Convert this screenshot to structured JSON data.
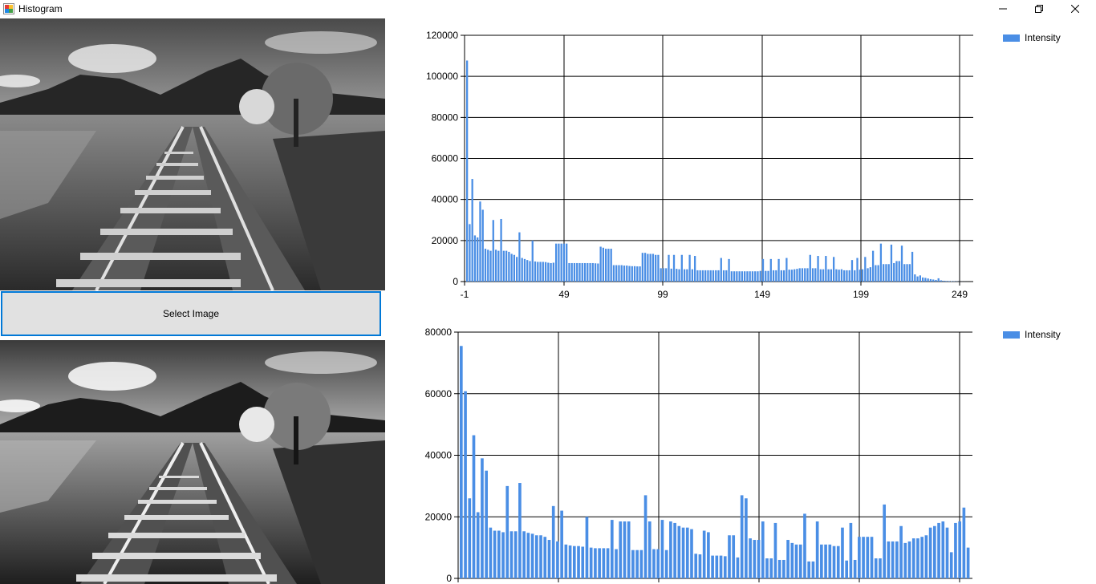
{
  "window": {
    "title": "Histogram",
    "icons": [
      "app-icon",
      "minimize-icon",
      "restore-icon",
      "close-icon"
    ]
  },
  "select_button": {
    "label": "Select Image"
  },
  "images": [
    {
      "name": "original-image",
      "description_visible": false
    },
    {
      "name": "equalized-image",
      "description_visible": false
    }
  ],
  "colors": {
    "bar": "#4a8ee5",
    "button_border": "#0078d7",
    "button_bg": "#e1e1e1"
  },
  "chart_data": [
    {
      "type": "bar",
      "legend": "Intensity",
      "legend_position": "top-right",
      "grid": true,
      "xlim": [
        -1,
        255
      ],
      "ylim": [
        0,
        120000
      ],
      "xticks": [
        -1,
        49,
        99,
        149,
        199,
        249
      ],
      "yticks": [
        0,
        20000,
        40000,
        60000,
        80000,
        100000,
        120000
      ],
      "series": [
        {
          "name": "Intensity",
          "values": [
            107700,
            28000,
            50000,
            22500,
            21500,
            39000,
            35000,
            16000,
            15500,
            15000,
            30000,
            15500,
            15000,
            30500,
            15000,
            15000,
            14500,
            13500,
            13000,
            12000,
            24000,
            11500,
            11000,
            10500,
            10000,
            20000,
            9800,
            9600,
            9600,
            9600,
            9500,
            9200,
            9000,
            9200,
            18500,
            18500,
            18500,
            18500,
            18500,
            9000,
            9000,
            9000,
            9000,
            9000,
            9000,
            9000,
            9000,
            9000,
            9000,
            8900,
            8800,
            17000,
            16500,
            16000,
            16000,
            16000,
            8000,
            8000,
            8000,
            8000,
            7800,
            7800,
            7600,
            7500,
            7500,
            7400,
            7400,
            14000,
            14000,
            13500,
            13500,
            13500,
            13000,
            13000,
            6500,
            6500,
            6500,
            13000,
            6300,
            13000,
            6200,
            6000,
            13000,
            6000,
            6000,
            13000,
            6000,
            12500,
            5500,
            5500,
            5500,
            5500,
            5500,
            5500,
            5500,
            5500,
            5500,
            11500,
            5500,
            5500,
            11000,
            5000,
            5000,
            5000,
            5000,
            5000,
            5000,
            5000,
            5000,
            5000,
            5000,
            5000,
            5200,
            11000,
            5200,
            5200,
            11000,
            5500,
            5500,
            11000,
            5500,
            5500,
            11500,
            5800,
            5800,
            6000,
            6200,
            6500,
            6500,
            6500,
            6500,
            13000,
            6500,
            6500,
            12500,
            6000,
            6000,
            12500,
            6000,
            6000,
            12000,
            6000,
            5800,
            6000,
            5500,
            5500,
            5500,
            10500,
            5500,
            11500,
            5800,
            6000,
            12000,
            6500,
            7000,
            15000,
            8000,
            8000,
            18500,
            8500,
            8500,
            8500,
            18000,
            9000,
            10000,
            10000,
            17500,
            8500,
            8500,
            8500,
            14500,
            3500,
            2500,
            3000,
            2000,
            1800,
            1500,
            1200,
            1000,
            800,
            1600,
            600,
            400,
            300,
            250,
            200,
            150,
            100,
            50,
            30,
            20,
            10,
            5
          ]
        }
      ]
    },
    {
      "type": "bar",
      "legend": "Intensity",
      "legend_position": "top-right",
      "grid": true,
      "ylim": [
        0,
        80000
      ],
      "yticks": [
        0,
        20000,
        40000,
        60000,
        80000
      ],
      "series": [
        {
          "name": "Intensity",
          "values": [
            75500,
            60800,
            26000,
            46500,
            21500,
            39000,
            35000,
            16500,
            15500,
            15500,
            15000,
            30000,
            15300,
            15300,
            31000,
            15300,
            14800,
            14500,
            14000,
            14000,
            13500,
            12500,
            23500,
            12000,
            22000,
            11000,
            10700,
            10500,
            10500,
            10300,
            20000,
            10000,
            9800,
            9800,
            9800,
            9800,
            19000,
            9500,
            18500,
            18500,
            18500,
            9200,
            9200,
            9200,
            27000,
            18500,
            9500,
            9500,
            19000,
            9200,
            18500,
            18000,
            17000,
            16500,
            16500,
            16000,
            8000,
            7800,
            15500,
            15000,
            7400,
            7400,
            7400,
            7200,
            14000,
            14000,
            6800,
            27000,
            26000,
            13000,
            12500,
            12500,
            18500,
            6500,
            6500,
            18000,
            6000,
            6000,
            12500,
            11500,
            11000,
            11000,
            21000,
            5500,
            5500,
            18500,
            11000,
            11000,
            11000,
            10500,
            10500,
            16500,
            5800,
            18000,
            6000,
            13500,
            13500,
            13500,
            13500,
            6500,
            6500,
            24000,
            12000,
            12000,
            12000,
            17000,
            11500,
            12000,
            13000,
            13000,
            13500,
            14000,
            16500,
            17000,
            18000,
            18500,
            16500,
            8500,
            18000,
            18500,
            23000,
            10000
          ]
        }
      ]
    }
  ]
}
